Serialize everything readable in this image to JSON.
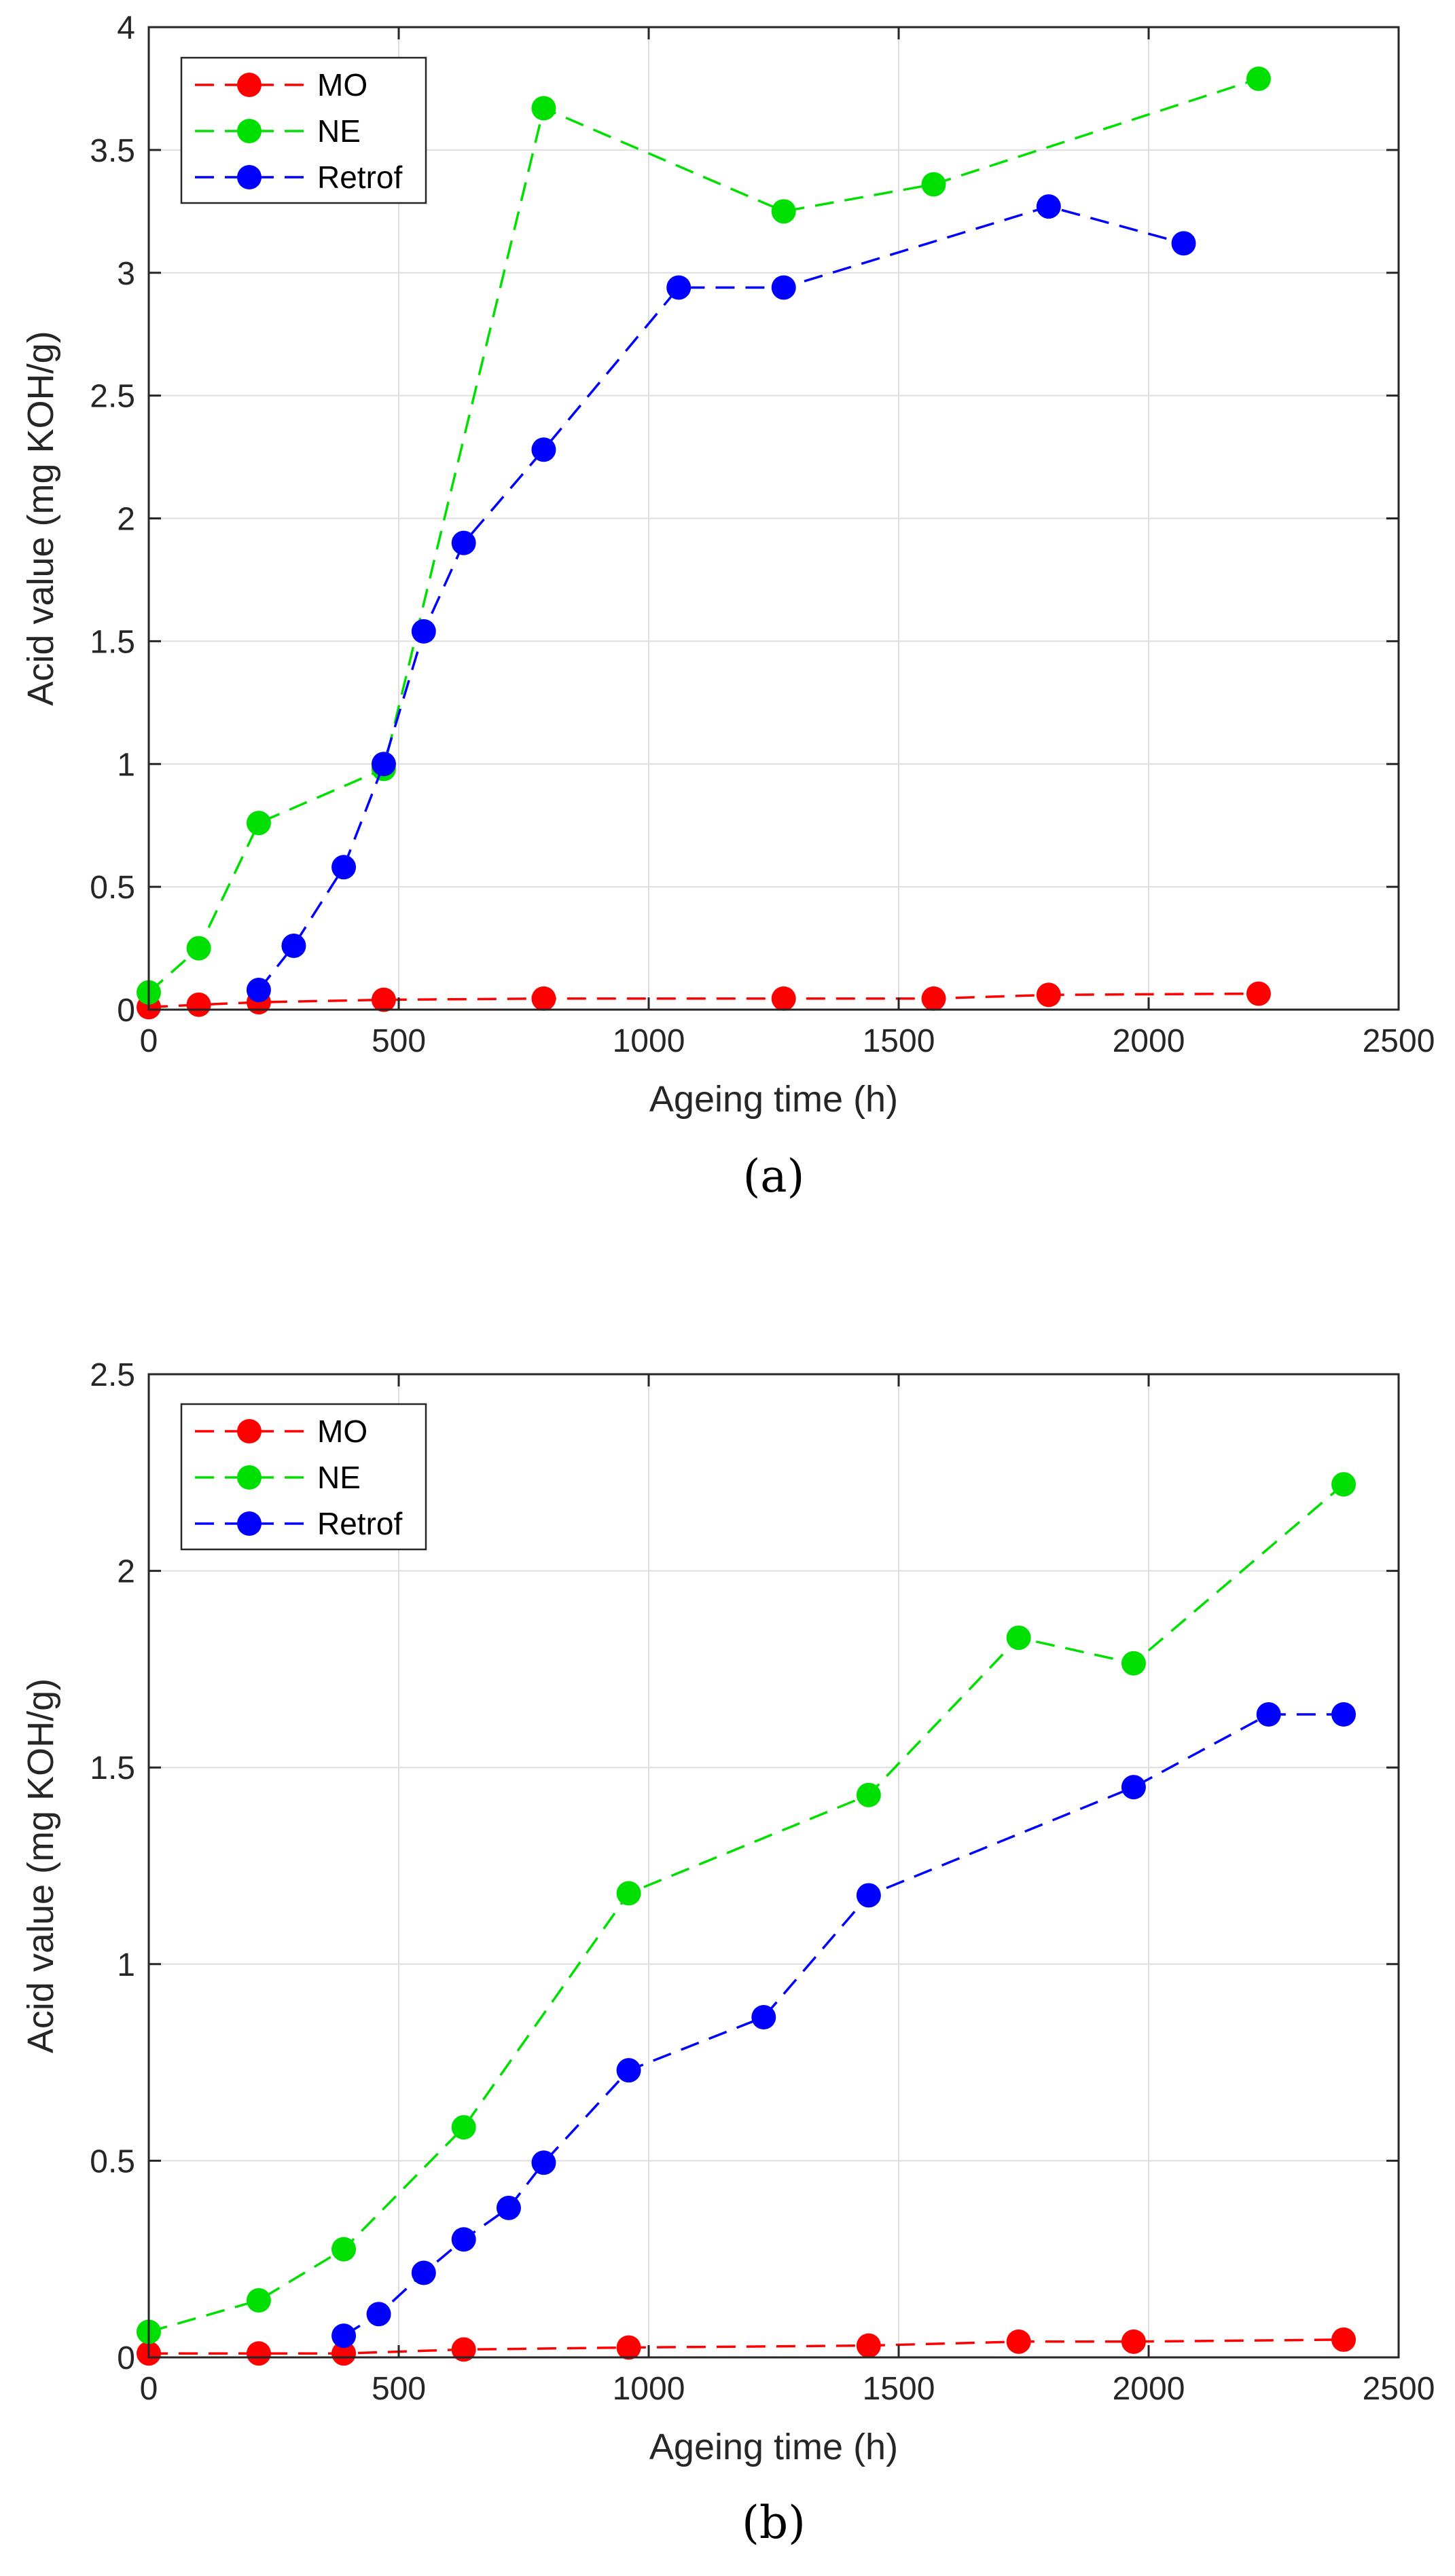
{
  "chart_data": [
    {
      "type": "line",
      "panel_label": "(a)",
      "xlabel": "Ageing time (h)",
      "ylabel": "Acid value (mg KOH/g)",
      "xlim": [
        0,
        2500
      ],
      "ylim": [
        0,
        4
      ],
      "xticks": [
        "0",
        "500",
        "1000",
        "1500",
        "2000",
        "2500"
      ],
      "yticks": [
        "0",
        "0.5",
        "1",
        "1.5",
        "2",
        "2.5",
        "3",
        "3.5",
        "4"
      ],
      "grid": true,
      "legend_position": "top-left",
      "series": [
        {
          "name": "MO",
          "color": "#ff0000",
          "x": [
            0,
            100,
            220,
            470,
            790,
            1270,
            1570,
            1800,
            2220
          ],
          "y": [
            0.01,
            0.02,
            0.03,
            0.04,
            0.045,
            0.045,
            0.045,
            0.06,
            0.065
          ]
        },
        {
          "name": "NE",
          "color": "#00e000",
          "x": [
            0,
            100,
            220,
            470,
            790,
            1270,
            1570,
            2220
          ],
          "y": [
            0.07,
            0.25,
            0.76,
            0.98,
            3.67,
            3.25,
            3.36,
            3.79
          ]
        },
        {
          "name": "Retrof",
          "color": "#0000ff",
          "x": [
            220,
            290,
            390,
            470,
            550,
            630,
            790,
            1060,
            1270,
            1800,
            2070
          ],
          "y": [
            0.08,
            0.26,
            0.58,
            1.0,
            1.54,
            1.9,
            2.28,
            2.94,
            2.94,
            3.27,
            3.12
          ]
        }
      ]
    },
    {
      "type": "line",
      "panel_label": "(b)",
      "xlabel": "Ageing time (h)",
      "ylabel": "Acid value (mg KOH/g)",
      "xlim": [
        0,
        2500
      ],
      "ylim": [
        0,
        2.5
      ],
      "xticks": [
        "0",
        "500",
        "1000",
        "1500",
        "2000",
        "2500"
      ],
      "yticks": [
        "0",
        "0.5",
        "1",
        "1.5",
        "2",
        "2.5"
      ],
      "grid": true,
      "legend_position": "top-left",
      "series": [
        {
          "name": "MO",
          "color": "#ff0000",
          "x": [
            0,
            220,
            390,
            630,
            960,
            1440,
            1740,
            1970,
            2390
          ],
          "y": [
            0.01,
            0.01,
            0.01,
            0.02,
            0.025,
            0.03,
            0.04,
            0.04,
            0.045
          ]
        },
        {
          "name": "NE",
          "color": "#00e000",
          "x": [
            0,
            220,
            390,
            630,
            960,
            1440,
            1740,
            1970,
            2390
          ],
          "y": [
            0.065,
            0.145,
            0.275,
            0.585,
            1.18,
            1.43,
            1.83,
            1.765,
            2.22
          ]
        },
        {
          "name": "Retrof",
          "color": "#0000ff",
          "x": [
            390,
            460,
            550,
            630,
            720,
            790,
            960,
            1230,
            1440,
            1970,
            2240,
            2390
          ],
          "y": [
            0.055,
            0.11,
            0.215,
            0.3,
            0.38,
            0.495,
            0.73,
            0.865,
            1.175,
            1.45,
            1.635,
            1.635
          ]
        }
      ]
    }
  ]
}
